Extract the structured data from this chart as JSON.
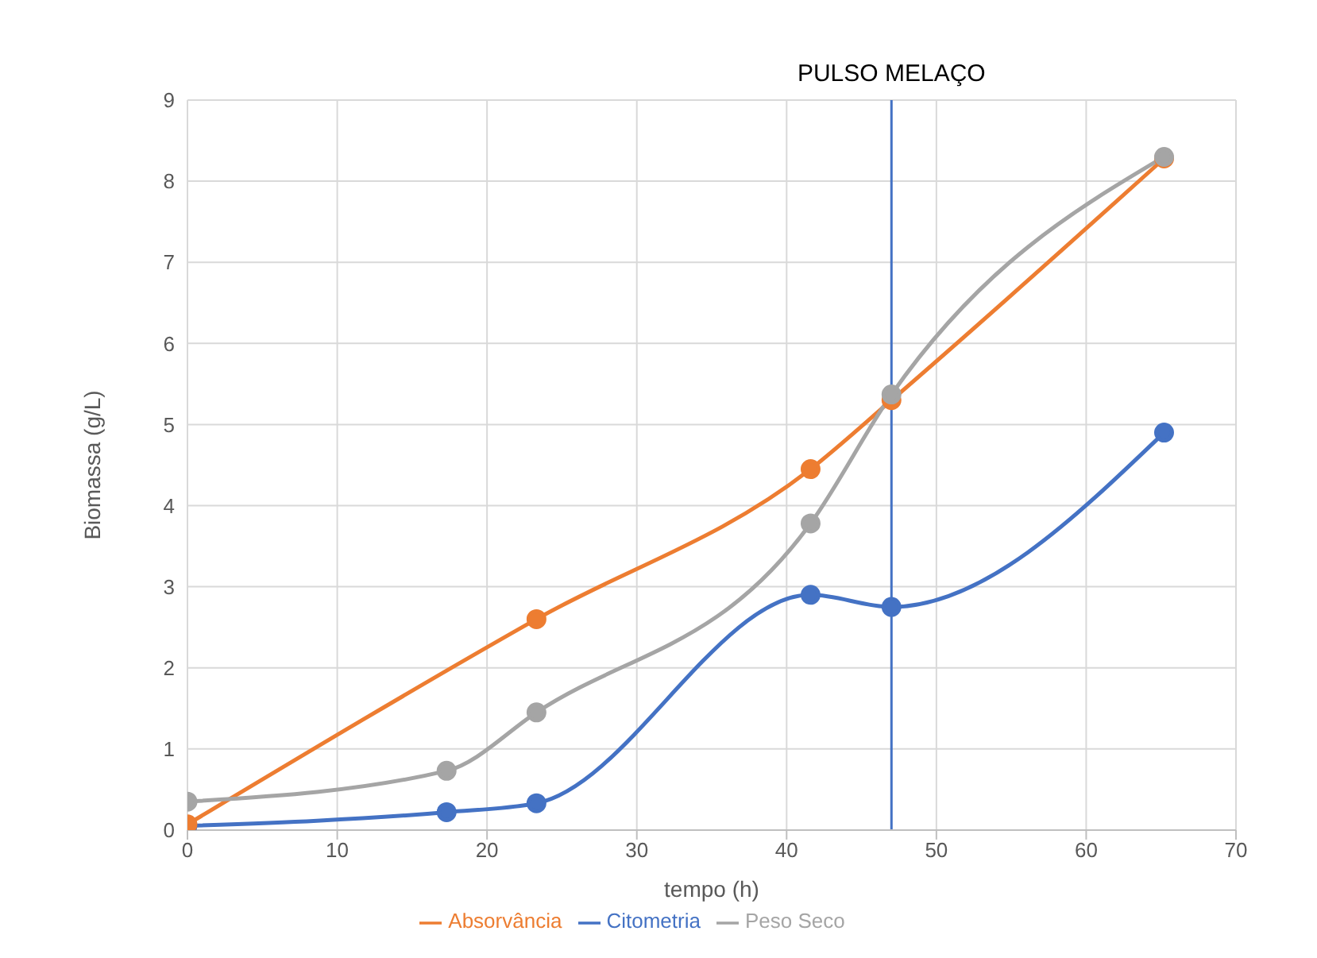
{
  "chart_data": {
    "type": "line",
    "xlabel": "tempo (h)",
    "ylabel": "Biomassa (g/L)",
    "xlim": [
      0,
      70
    ],
    "xticks": [
      0,
      10,
      20,
      30,
      40,
      50,
      60,
      70
    ],
    "ylim": [
      0,
      9
    ],
    "yticks": [
      0,
      1,
      2,
      3,
      4,
      5,
      6,
      7,
      8,
      9
    ],
    "grid": true,
    "legend": "bottom",
    "marker": "circle",
    "line_style": "solid",
    "series": [
      {
        "name": "Citometria",
        "color": "#4472c4",
        "x": [
          0,
          17.3,
          23.3,
          41.6,
          47,
          65.2
        ],
        "values": [
          0.05,
          0.22,
          0.33,
          2.9,
          2.75,
          4.9
        ]
      },
      {
        "name": "Absorvância",
        "color": "#ed7d31",
        "x": [
          0,
          23.3,
          41.6,
          47,
          65.2
        ],
        "values": [
          0.07,
          2.6,
          4.45,
          5.3,
          8.28
        ]
      },
      {
        "name": "Peso Seco",
        "color": "#a5a5a5",
        "x": [
          0,
          17.3,
          23.3,
          41.6,
          47,
          65.2
        ],
        "values": [
          0.35,
          0.73,
          1.45,
          3.78,
          5.37,
          8.3
        ]
      }
    ],
    "ref_lines": [
      {
        "axis": "x",
        "value": 47,
        "label": "PULSO MELAÇO",
        "color": "#4472c4",
        "line_style": "solid"
      }
    ]
  }
}
